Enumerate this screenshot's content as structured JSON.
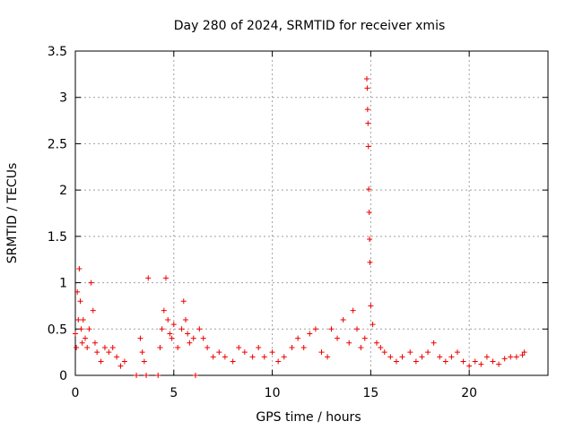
{
  "chart_data": {
    "type": "scatter",
    "title": "Day 280 of 2024, SRMTID for receiver xmis",
    "xlabel": "GPS time / hours",
    "ylabel": "SRMTID / TECUs",
    "xlim": [
      0,
      24
    ],
    "ylim": [
      0,
      3.5
    ],
    "x_ticks": [
      0,
      5,
      10,
      15,
      20
    ],
    "x_tick_labels": [
      "0",
      "5",
      "10",
      "15",
      "20"
    ],
    "y_ticks": [
      0,
      0.5,
      1,
      1.5,
      2,
      2.5,
      3,
      3.5
    ],
    "y_tick_labels": [
      "0",
      "0.5",
      "1",
      "1.5",
      "2",
      "2.5",
      "3",
      "3.5"
    ],
    "grid": true,
    "marker": "+",
    "color": "#ee0000",
    "series": [
      {
        "name": "SRMTID",
        "x": [
          0.0,
          0.05,
          0.1,
          0.15,
          0.2,
          0.25,
          0.3,
          0.35,
          0.4,
          0.5,
          0.6,
          0.7,
          0.8,
          0.9,
          1.0,
          1.1,
          1.3,
          1.5,
          1.7,
          1.9,
          2.1,
          2.3,
          2.5,
          3.1,
          3.3,
          3.4,
          3.5,
          3.6,
          3.7,
          4.2,
          4.3,
          4.4,
          4.5,
          4.6,
          4.7,
          4.8,
          4.9,
          5.0,
          5.2,
          5.4,
          5.5,
          5.6,
          5.7,
          5.8,
          6.0,
          6.1,
          6.3,
          6.5,
          6.7,
          7.0,
          7.3,
          7.6,
          8.0,
          8.3,
          8.6,
          9.0,
          9.3,
          9.6,
          10.0,
          10.3,
          10.6,
          11.0,
          11.3,
          11.6,
          11.9,
          12.2,
          12.5,
          12.8,
          13.0,
          13.3,
          13.6,
          13.9,
          14.1,
          14.3,
          14.5,
          14.7,
          14.8,
          14.82,
          14.84,
          14.86,
          14.88,
          14.9,
          14.92,
          14.94,
          14.96,
          15.0,
          15.1,
          15.3,
          15.5,
          15.7,
          16.0,
          16.3,
          16.6,
          17.0,
          17.3,
          17.6,
          17.9,
          18.2,
          18.5,
          18.8,
          19.1,
          19.4,
          19.7,
          20.0,
          20.3,
          20.6,
          20.9,
          21.2,
          21.5,
          21.8,
          22.1,
          22.4,
          22.7,
          22.8
        ],
        "y": [
          0.45,
          0.3,
          0.9,
          0.6,
          1.15,
          0.8,
          0.5,
          0.35,
          0.6,
          0.4,
          0.3,
          0.5,
          1.0,
          0.7,
          0.35,
          0.25,
          0.15,
          0.3,
          0.25,
          0.3,
          0.2,
          0.1,
          0.15,
          0.0,
          0.4,
          0.25,
          0.15,
          0.0,
          1.05,
          0.0,
          0.3,
          0.5,
          0.7,
          1.05,
          0.6,
          0.45,
          0.4,
          0.55,
          0.3,
          0.5,
          0.8,
          0.6,
          0.45,
          0.35,
          0.4,
          0.0,
          0.5,
          0.4,
          0.3,
          0.2,
          0.25,
          0.2,
          0.15,
          0.3,
          0.25,
          0.2,
          0.3,
          0.2,
          0.25,
          0.15,
          0.2,
          0.3,
          0.4,
          0.3,
          0.45,
          0.5,
          0.25,
          0.2,
          0.5,
          0.4,
          0.6,
          0.35,
          0.7,
          0.5,
          0.3,
          0.4,
          3.2,
          3.1,
          2.87,
          2.72,
          2.47,
          2.01,
          1.76,
          1.47,
          1.22,
          0.75,
          0.55,
          0.35,
          0.3,
          0.25,
          0.2,
          0.15,
          0.2,
          0.25,
          0.15,
          0.2,
          0.25,
          0.35,
          0.2,
          0.15,
          0.2,
          0.25,
          0.15,
          0.1,
          0.15,
          0.12,
          0.2,
          0.15,
          0.12,
          0.18,
          0.2,
          0.2,
          0.22,
          0.25
        ]
      }
    ]
  }
}
